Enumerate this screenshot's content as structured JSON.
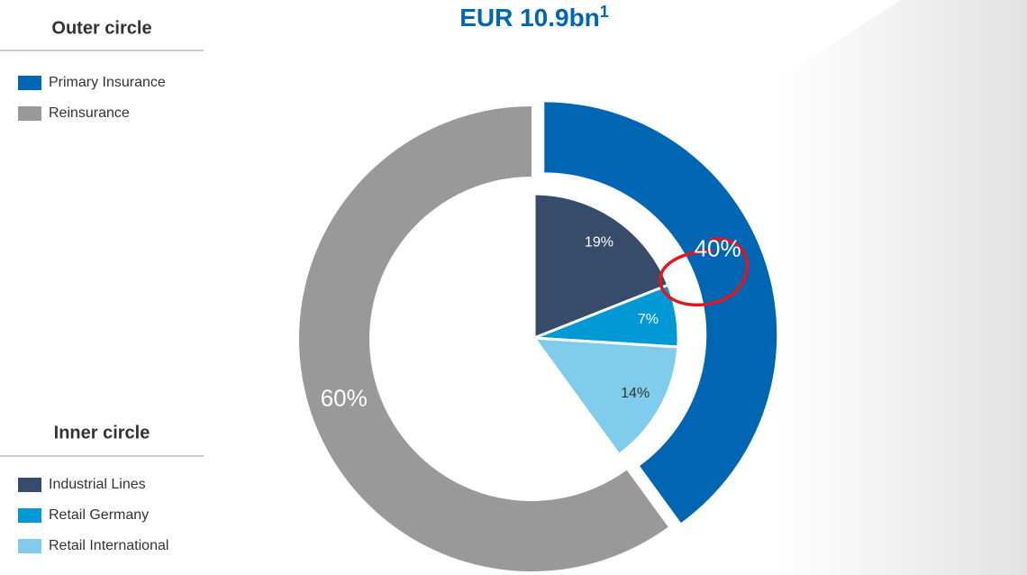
{
  "chart_data": {
    "type": "nested-donut",
    "title": "EUR 10.9bn",
    "title_footnote": "1",
    "outer": {
      "legend_title": "Outer circle",
      "categories": [
        "Primary Insurance",
        "Reinsurance"
      ],
      "values": [
        40,
        60
      ],
      "value_labels": [
        "40%",
        "60%"
      ],
      "colors": [
        "#0066b3",
        "#999999"
      ]
    },
    "inner": {
      "legend_title": "Inner circle",
      "categories": [
        "Industrial Lines",
        "Retail Germany",
        "Retail International"
      ],
      "values": [
        19,
        7,
        14
      ],
      "value_labels": [
        "19%",
        "7%",
        "14%"
      ],
      "colors": [
        "#374b6b",
        "#0099d5",
        "#80ccec"
      ]
    }
  }
}
